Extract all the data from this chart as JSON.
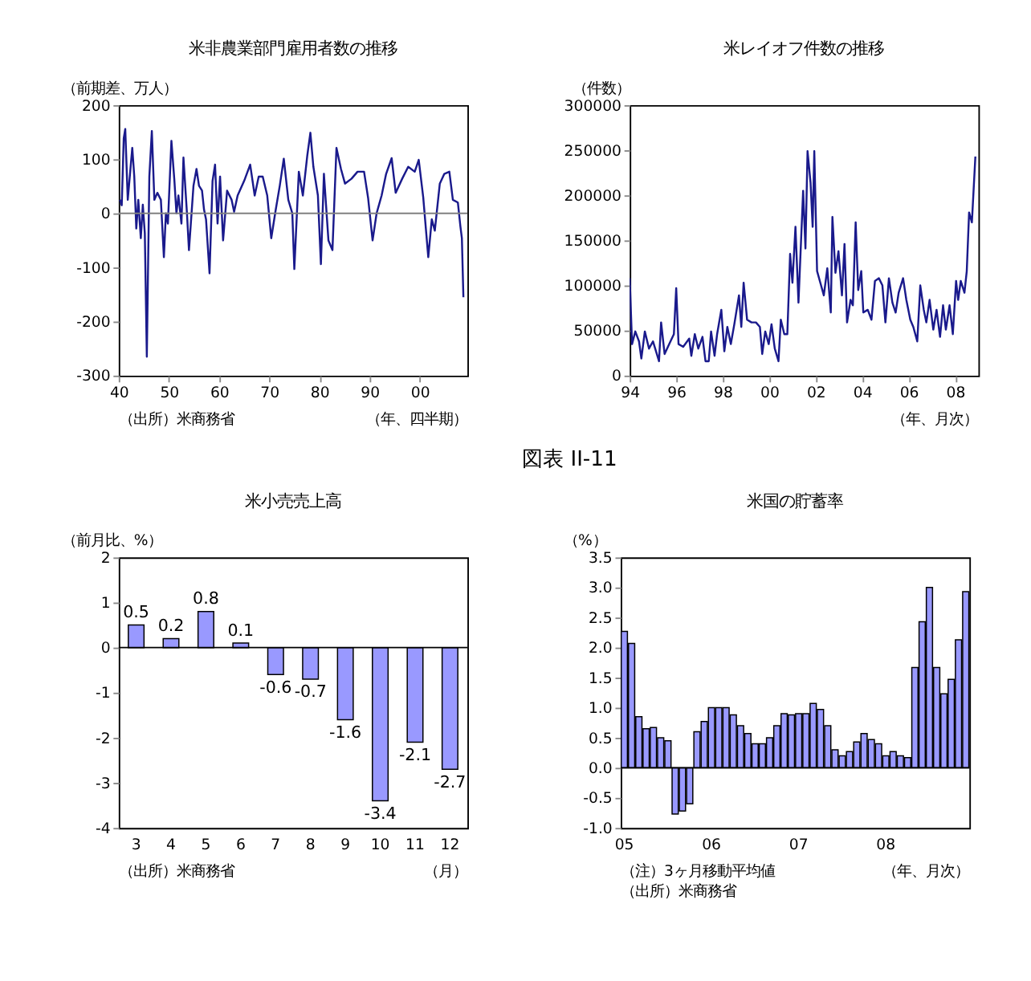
{
  "chart_data": [
    {
      "type": "line",
      "title": "米非農業部門雇用者数の推移",
      "ylabel": "（前期差、万人）",
      "xlabel": "（年、四半期）",
      "annotations": [
        "（出所）米商務省"
      ],
      "color": "#1a1a8c",
      "x": [
        1940.25,
        1940.6,
        1941,
        1941.3,
        1941.8,
        1942.7,
        1943.1,
        1943.5,
        1943.9,
        1944.4,
        1944.8,
        1945.2,
        1945.6,
        1946.1,
        1946.6,
        1947.1,
        1947.7,
        1948.4,
        1949,
        1949.4,
        1949.8,
        1950.5,
        1951.1,
        1951.5,
        1951.9,
        1952.5,
        1952.9,
        1953.6,
        1954,
        1954.9,
        1955.5,
        1956,
        1956.6,
        1957,
        1957.4,
        1958.1,
        1958.7,
        1959.2,
        1959.7,
        1960.2,
        1960.8,
        1961.6,
        1962.5,
        1963,
        1963.7,
        1965,
        1966.2,
        1967.1,
        1967.9,
        1968.7,
        1969.6,
        1970.4,
        1971.3,
        1972.1,
        1972.9,
        1973.8,
        1974.6,
        1975,
        1975.9,
        1976.7,
        1977.6,
        1978.2,
        1978.8,
        1979.7,
        1980.3,
        1980.9,
        1981.8,
        1982.6,
        1983.4,
        1984.3,
        1985.1,
        1986.4,
        1987.6,
        1988.9,
        1989.7,
        1990.6,
        1991.4,
        1992.4,
        1993.3,
        1994.4,
        1995.2,
        1996.5,
        1997.7,
        1999,
        1999.8,
        2000.7,
        2001.7,
        2002.4,
        2003,
        2004,
        2004.9,
        2005.9,
        2006.6,
        2007.6,
        2008.1,
        2008.4,
        2008.7
      ],
      "values": [
        25,
        15,
        139,
        156,
        25,
        121,
        68,
        -28,
        25,
        -46,
        16,
        -37,
        -265,
        68,
        152,
        25,
        38,
        25,
        -81,
        0,
        -19,
        134,
        60,
        0,
        33,
        -19,
        103,
        0,
        -68,
        51,
        82,
        51,
        42,
        7,
        -11,
        -111,
        60,
        90,
        -19,
        68,
        -50,
        42,
        25,
        3,
        33,
        60,
        90,
        33,
        68,
        68,
        33,
        -46,
        7,
        51,
        101,
        25,
        0,
        -103,
        77,
        33,
        108,
        149,
        86,
        33,
        -94,
        73,
        -50,
        -68,
        121,
        82,
        55,
        64,
        77,
        77,
        29,
        -50,
        0,
        33,
        73,
        102,
        38,
        64,
        86,
        77,
        99,
        29,
        -81,
        -11,
        -32,
        55,
        73,
        77,
        25,
        20,
        -24,
        -46,
        -155
      ],
      "xlim": [
        1940,
        2009.5
      ],
      "xticks": [
        {
          "value": 1940,
          "label": "40"
        },
        {
          "value": 1950,
          "label": "50"
        },
        {
          "value": 1960,
          "label": "60"
        },
        {
          "value": 1970,
          "label": "70"
        },
        {
          "value": 1980,
          "label": "80"
        },
        {
          "value": 1990,
          "label": "90"
        },
        {
          "value": 2000,
          "label": "00"
        }
      ],
      "ylim": [
        -300,
        200
      ],
      "yticks": [
        -300,
        -200,
        -100,
        0,
        100,
        200
      ],
      "ref_lines": [
        {
          "axis": "y",
          "value": 0,
          "color": "#808080"
        }
      ],
      "grid": false
    },
    {
      "type": "line",
      "title": "米レイオフ件数の推移",
      "ylabel": "（件数）",
      "xlabel": "（年、月次）",
      "color": "#1a1a8c",
      "x": [
        1994.0,
        1994.1,
        1994.24,
        1994.4,
        1994.5,
        1994.65,
        1994.83,
        1995.0,
        1995.26,
        1995.35,
        1995.5,
        1995.7,
        1995.9,
        1996.0,
        1996.1,
        1996.3,
        1996.56,
        1996.65,
        1996.8,
        1996.95,
        1997.13,
        1997.26,
        1997.4,
        1997.5,
        1997.65,
        1997.76,
        1997.94,
        1998.07,
        1998.2,
        1998.35,
        1998.5,
        1998.7,
        1998.8,
        1998.9,
        1999.05,
        1999.24,
        1999.43,
        1999.6,
        1999.7,
        1999.83,
        1999.98,
        2000.1,
        2000.24,
        2000.4,
        2000.5,
        2000.65,
        2000.78,
        2000.9,
        2001.0,
        2001.13,
        2001.26,
        2001.46,
        2001.56,
        2001.65,
        2001.78,
        2001.87,
        2001.94,
        2002.06,
        2002.2,
        2002.35,
        2002.5,
        2002.65,
        2002.72,
        2002.85,
        2002.98,
        2003.13,
        2003.24,
        2003.35,
        2003.5,
        2003.6,
        2003.72,
        2003.83,
        2003.96,
        2004.05,
        2004.24,
        2004.4,
        2004.55,
        2004.72,
        2004.87,
        2005.0,
        2005.15,
        2005.3,
        2005.44,
        2005.57,
        2005.76,
        2005.9,
        2006.07,
        2006.2,
        2006.37,
        2006.5,
        2006.65,
        2006.76,
        2006.9,
        2007.06,
        2007.2,
        2007.35,
        2007.48,
        2007.6,
        2007.76,
        2007.9,
        2008.04,
        2008.13,
        2008.24,
        2008.4,
        2008.5,
        2008.6,
        2008.72,
        2008.87
      ],
      "values": [
        108000,
        35000,
        49000,
        38000,
        19000,
        49000,
        30000,
        38000,
        16000,
        59000,
        24000,
        35000,
        46000,
        97000,
        35000,
        32000,
        41000,
        22000,
        46000,
        30000,
        43000,
        16000,
        16000,
        49000,
        22000,
        46000,
        73000,
        27000,
        54000,
        35000,
        57000,
        89000,
        54000,
        103000,
        62000,
        59000,
        59000,
        54000,
        24000,
        49000,
        35000,
        57000,
        30000,
        16000,
        62000,
        46000,
        46000,
        135000,
        103000,
        165000,
        81000,
        205000,
        141000,
        249000,
        214000,
        165000,
        249000,
        116000,
        103000,
        89000,
        119000,
        70000,
        176000,
        114000,
        138000,
        89000,
        146000,
        59000,
        84000,
        78000,
        170000,
        95000,
        116000,
        70000,
        73000,
        62000,
        105000,
        108000,
        100000,
        59000,
        108000,
        81000,
        70000,
        92000,
        108000,
        84000,
        62000,
        54000,
        38000,
        100000,
        73000,
        59000,
        84000,
        51000,
        73000,
        43000,
        78000,
        51000,
        78000,
        46000,
        105000,
        84000,
        105000,
        92000,
        116000,
        181000,
        170000,
        243000
      ],
      "xlim": [
        1994,
        2009
      ],
      "xticks": [
        {
          "value": 1994,
          "label": "94"
        },
        {
          "value": 1996,
          "label": "96"
        },
        {
          "value": 1998,
          "label": "98"
        },
        {
          "value": 2000,
          "label": "00"
        },
        {
          "value": 2002,
          "label": "02"
        },
        {
          "value": 2004,
          "label": "04"
        },
        {
          "value": 2006,
          "label": "06"
        },
        {
          "value": 2008,
          "label": "08"
        }
      ],
      "ylim": [
        0,
        300000
      ],
      "yticks": [
        0,
        50000,
        100000,
        150000,
        200000,
        250000,
        300000
      ],
      "grid": false
    },
    {
      "type": "other",
      "title": "図表 II-11"
    },
    {
      "type": "bar",
      "title": "米小売売上高",
      "ylabel": "（前月比、%）",
      "xlabel": "（月）",
      "annotations": [
        "（出所）米商務省"
      ],
      "color": "#9999ff",
      "categories": [
        "3",
        "4",
        "5",
        "6",
        "7",
        "8",
        "9",
        "10",
        "11",
        "12"
      ],
      "values": [
        0.5,
        0.2,
        0.8,
        0.1,
        -0.6,
        -0.7,
        -1.6,
        -3.4,
        -2.1,
        -2.7
      ],
      "data_labels": true,
      "ylim": [
        -4,
        2
      ],
      "yticks": [
        -4,
        -3,
        -2,
        -1,
        0,
        1,
        2
      ],
      "ref_lines": [
        {
          "axis": "y",
          "value": 0,
          "color": "#000000"
        }
      ],
      "grid": false
    },
    {
      "type": "bar",
      "title": "米国の貯蓄率",
      "ylabel": "（%）",
      "xlabel": "（年、月次）",
      "annotations": [
        "（注）3ヶ月移動平均値",
        "（出所）米商務省"
      ],
      "color": "#9999ff",
      "categories": [
        "05",
        null,
        null,
        null,
        null,
        null,
        null,
        null,
        null,
        null,
        null,
        null,
        "06",
        null,
        null,
        null,
        null,
        null,
        null,
        null,
        null,
        null,
        null,
        null,
        "07",
        null,
        null,
        null,
        null,
        null,
        null,
        null,
        null,
        null,
        null,
        null,
        "08",
        null,
        null,
        null,
        null,
        null,
        null,
        null,
        null,
        null,
        null,
        null
      ],
      "values": [
        2.27,
        2.07,
        0.85,
        0.65,
        0.67,
        0.5,
        0.45,
        -0.77,
        -0.72,
        -0.6,
        0.6,
        0.77,
        1.0,
        1.0,
        1.0,
        0.88,
        0.7,
        0.57,
        0.4,
        0.4,
        0.5,
        0.7,
        0.9,
        0.88,
        0.9,
        0.9,
        1.07,
        0.97,
        0.7,
        0.3,
        0.2,
        0.27,
        0.43,
        0.57,
        0.47,
        0.4,
        0.2,
        0.27,
        0.2,
        0.17,
        1.67,
        2.43,
        3.0,
        1.67,
        1.23,
        1.47,
        2.13,
        2.93
      ],
      "ylim": [
        -1,
        3.5
      ],
      "yticks": [
        {
          "value": -1,
          "label": "-1.0"
        },
        -0.5,
        {
          "value": 0,
          "label": "0.0"
        },
        0.5,
        {
          "value": 1,
          "label": "1.0"
        },
        1.5,
        {
          "value": 2,
          "label": "2.0"
        },
        2.5,
        {
          "value": 3,
          "label": "3.0"
        },
        3.5
      ],
      "ref_lines": [
        {
          "axis": "y",
          "value": 0,
          "color": "#000000"
        }
      ],
      "grid": false
    }
  ]
}
